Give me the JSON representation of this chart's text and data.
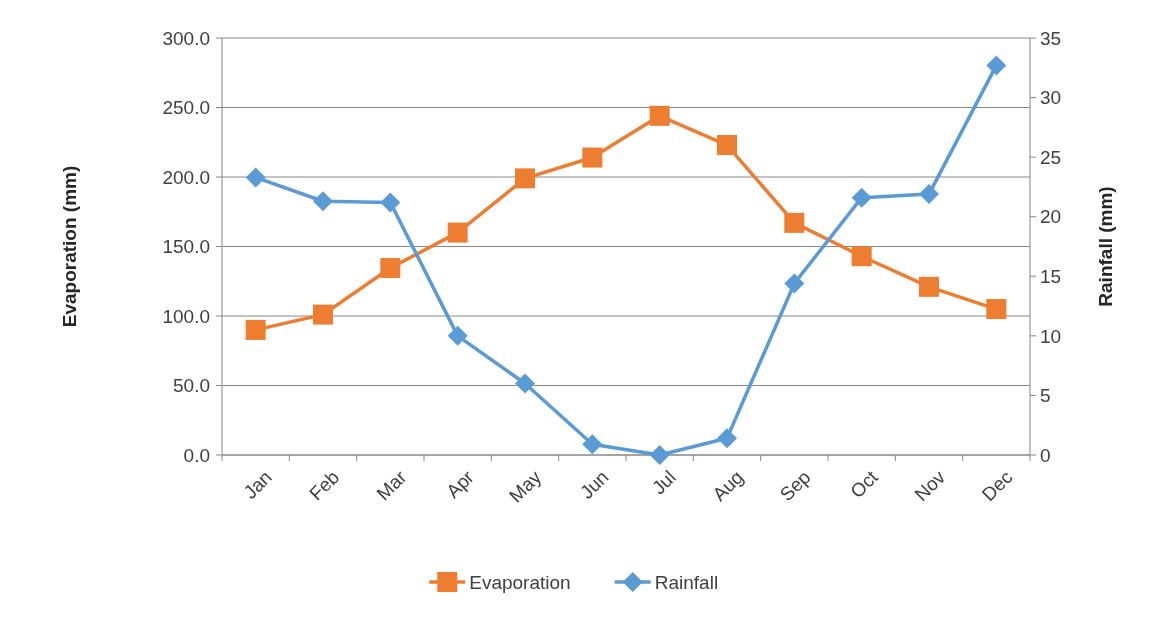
{
  "chart_data": {
    "type": "line",
    "categories": [
      "Jan",
      "Feb",
      "Mar",
      "Apr",
      "May",
      "Jun",
      "Jul",
      "Aug",
      "Sep",
      "Oct",
      "Nov",
      "Dec"
    ],
    "series": [
      {
        "name": "Evaporation",
        "color": "#ed7d31",
        "marker": "square",
        "values": [
          90,
          101,
          134.5,
          160,
          199,
          214,
          244,
          223,
          167,
          143,
          121,
          105
        ]
      },
      {
        "name": "Rainfall",
        "color": "#5b9bd5",
        "marker": "diamond",
        "axis": "y2",
        "values": [
          23.3,
          21.3,
          21.2,
          10.0,
          6.0,
          0.9,
          0.0,
          1.4,
          14.4,
          21.6,
          21.9,
          32.7
        ]
      }
    ],
    "ylabel": "Evaporation (mm)",
    "y2label": "Rainfall (mm)",
    "ylim": [
      0,
      300
    ],
    "yticks": [
      {
        "value": 0,
        "label": "0.0"
      },
      {
        "value": 50,
        "label": "50.0"
      },
      {
        "value": 100,
        "label": "100.0"
      },
      {
        "value": 150,
        "label": "150.0"
      },
      {
        "value": 200,
        "label": "200.0"
      },
      {
        "value": 250,
        "label": "250.0"
      },
      {
        "value": 300,
        "label": "300.0"
      }
    ],
    "y2lim": [
      0,
      35
    ],
    "y2ticks": [
      0,
      5,
      10,
      15,
      20,
      25,
      30,
      35
    ],
    "grid": "y",
    "legend": "bottom"
  }
}
